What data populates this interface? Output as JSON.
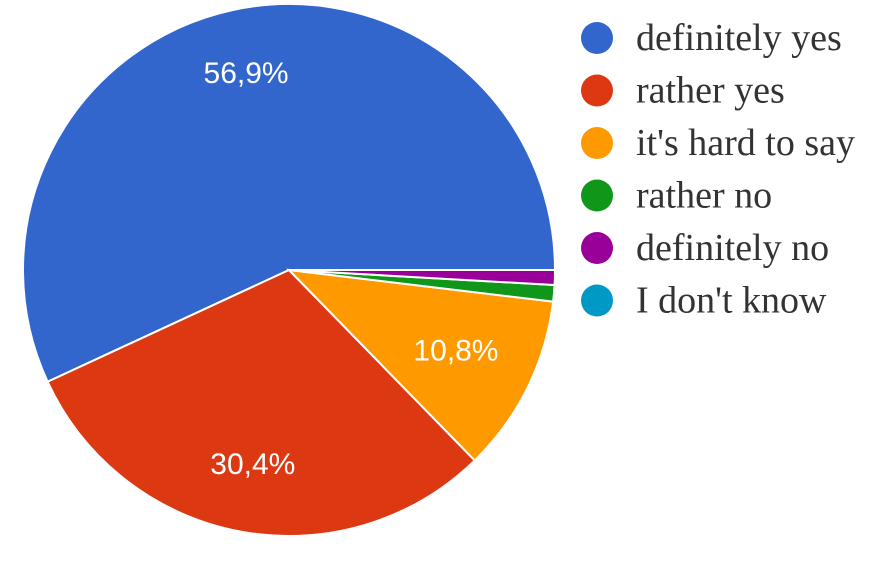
{
  "chart_data": {
    "type": "pie",
    "categories": [
      "definitely yes",
      "rather yes",
      "it's hard to say",
      "rather no",
      "definitely no",
      "I don't know"
    ],
    "values": [
      56.9,
      30.4,
      10.8,
      1.0,
      0.9,
      0.0
    ],
    "value_labels": [
      "56,9%",
      "30,4%",
      "10,8%",
      "",
      "",
      ""
    ],
    "colors": [
      "#3366cc",
      "#dc3912",
      "#ff9900",
      "#109618",
      "#990099",
      "#0099c6"
    ],
    "legend_position": "right"
  }
}
